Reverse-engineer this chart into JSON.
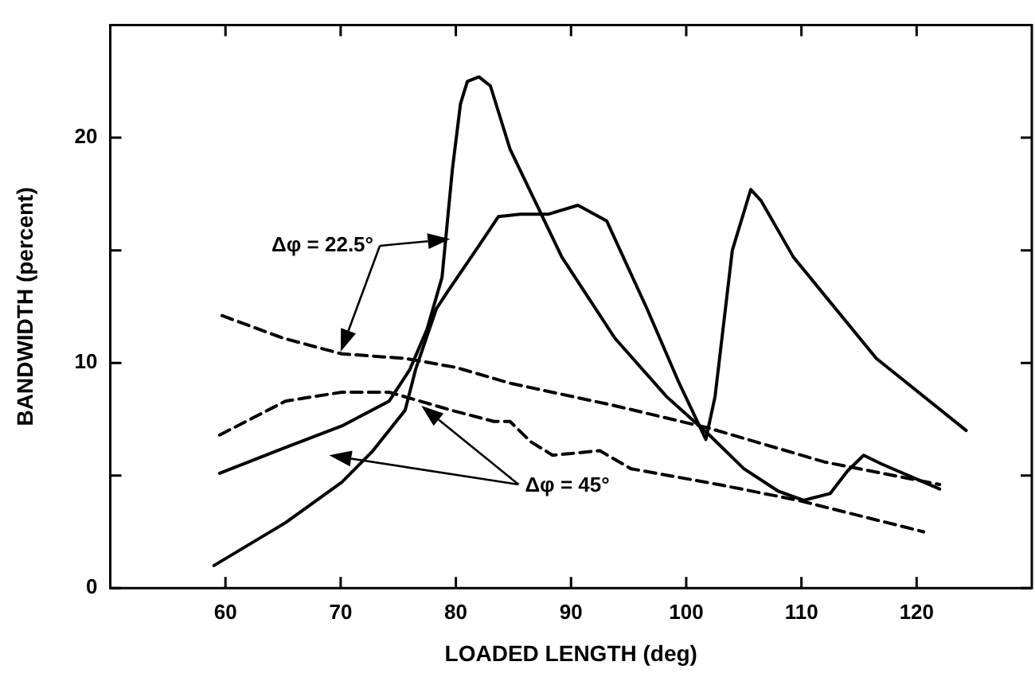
{
  "chart_data": {
    "type": "line",
    "xlabel": "LOADED LENGTH (deg)",
    "ylabel": "BANDWIDTH (percent)",
    "xlim": [
      50,
      130
    ],
    "xticks": [
      60,
      70,
      80,
      90,
      100,
      110,
      120
    ],
    "ylim": [
      0,
      25
    ],
    "yticks": [
      0,
      {
        "value": 5,
        "label": null
      },
      10,
      {
        "value": 15,
        "label": null
      },
      20
    ],
    "grid": false,
    "legend": false,
    "marker": "none",
    "annotations": [
      "Δφ = 22.5°",
      "Δφ = 45°"
    ],
    "series": [
      {
        "color": "#000000",
        "line_style": "solid",
        "x": [
          59.5,
          65,
          70.1,
          74.2,
          76,
          77.5,
          78.8,
          79.7,
          80.4,
          81,
          82,
          83,
          84.7,
          89.2,
          93.8,
          98.3,
          102,
          105,
          108,
          110.2,
          112.5,
          114,
          115.4,
          117,
          122
        ],
        "values": [
          5.1,
          6.2,
          7.2,
          8.3,
          9.7,
          11.5,
          13.8,
          18.6,
          21.5,
          22.5,
          22.7,
          22.3,
          19.5,
          14.7,
          11.1,
          8.5,
          6.8,
          5.3,
          4.3,
          3.9,
          4.2,
          5.2,
          5.9,
          5.5,
          4.4
        ]
      },
      {
        "color": "#000000",
        "line_style": "solid",
        "x": [
          59,
          65.2,
          70.1,
          72.8,
          75.6,
          76.5,
          78.3,
          79.2,
          82,
          83.7,
          85.6,
          88,
          90.6,
          93.1,
          96.6,
          99.3,
          101.7,
          102.5,
          104,
          105.6,
          106.5,
          109.3,
          116.5,
          124.3
        ],
        "values": [
          1.0,
          2.9,
          4.7,
          6.1,
          7.9,
          9.7,
          12.4,
          13.1,
          15.2,
          16.5,
          16.6,
          16.6,
          17.0,
          16.3,
          12.4,
          9.2,
          6.6,
          8.5,
          15,
          17.7,
          17.2,
          14.7,
          10.2,
          7.0
        ]
      },
      {
        "color": "#000000",
        "line_style": "dashed",
        "x": [
          59.7,
          65,
          70.1,
          75.6,
          80,
          84.7,
          93.8,
          102,
          112,
          122
        ],
        "values": [
          12.1,
          11.1,
          10.4,
          10.2,
          9.8,
          9.1,
          8.1,
          7.1,
          5.6,
          4.6
        ]
      },
      {
        "color": "#000000",
        "line_style": "dashed",
        "x": [
          59.5,
          65.2,
          70.1,
          74.2,
          79.6,
          83.3,
          84.7,
          86.5,
          88.4,
          92.5,
          95.2,
          102.8,
          109.7,
          120.6
        ],
        "values": [
          6.8,
          8.3,
          8.7,
          8.7,
          7.9,
          7.4,
          7.4,
          6.5,
          5.9,
          6.1,
          5.3,
          4.6,
          3.9,
          2.5
        ]
      }
    ]
  }
}
